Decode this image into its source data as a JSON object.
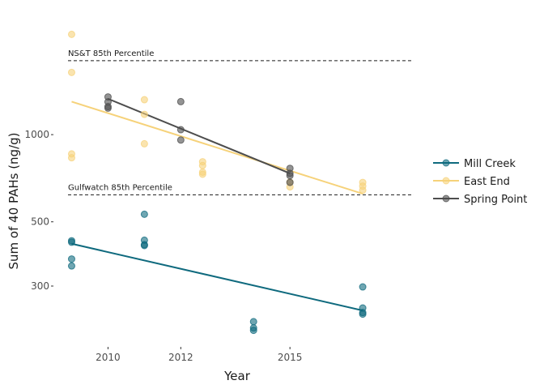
{
  "chart_data": {
    "type": "scatter",
    "xlabel": "Year",
    "ylabel": "Sum of 40 PAHs (ng/g)",
    "xlim": [
      2008.5,
      2018.6
    ],
    "ylim": [
      185,
      2700
    ],
    "y_scale": "log",
    "grid": false,
    "legend_position": "right",
    "x_ticks": [
      2010,
      2012,
      2015
    ],
    "y_ticks": [
      300,
      500,
      1000
    ],
    "reference_lines": [
      {
        "label": "NS&T 85th Percentile",
        "y": 1800
      },
      {
        "label": "Gulfwatch 85th Percentile",
        "y": 620
      }
    ],
    "series": [
      {
        "name": "Mill Creek",
        "color": "#0f6a7e",
        "points": [
          {
            "x": 2009,
            "y": 430
          },
          {
            "x": 2009,
            "y": 425
          },
          {
            "x": 2009,
            "y": 372
          },
          {
            "x": 2009,
            "y": 352
          },
          {
            "x": 2011,
            "y": 531
          },
          {
            "x": 2011,
            "y": 432
          },
          {
            "x": 2011,
            "y": 417
          },
          {
            "x": 2011,
            "y": 414
          },
          {
            "x": 2014,
            "y": 226
          },
          {
            "x": 2014,
            "y": 215
          },
          {
            "x": 2014,
            "y": 211
          },
          {
            "x": 2017,
            "y": 298
          },
          {
            "x": 2017,
            "y": 252
          },
          {
            "x": 2017,
            "y": 243
          },
          {
            "x": 2017,
            "y": 240
          }
        ],
        "trend": [
          {
            "x": 2009,
            "y": 420
          },
          {
            "x": 2017,
            "y": 247
          }
        ]
      },
      {
        "name": "East End",
        "color": "#f6d27a",
        "points": [
          {
            "x": 2009,
            "y": 2220
          },
          {
            "x": 2009,
            "y": 1640
          },
          {
            "x": 2009,
            "y": 858
          },
          {
            "x": 2009,
            "y": 832
          },
          {
            "x": 2011,
            "y": 1320
          },
          {
            "x": 2011,
            "y": 1175
          },
          {
            "x": 2011,
            "y": 930
          },
          {
            "x": 2012.6,
            "y": 806
          },
          {
            "x": 2012.6,
            "y": 782
          },
          {
            "x": 2012.6,
            "y": 742
          },
          {
            "x": 2012.6,
            "y": 730
          },
          {
            "x": 2015,
            "y": 686
          },
          {
            "x": 2015,
            "y": 660
          },
          {
            "x": 2017,
            "y": 684
          },
          {
            "x": 2017,
            "y": 664
          },
          {
            "x": 2017,
            "y": 643
          }
        ],
        "trend": [
          {
            "x": 2009,
            "y": 1300
          },
          {
            "x": 2017,
            "y": 625
          }
        ]
      },
      {
        "name": "Spring Point",
        "color": "#4d4d4d",
        "points": [
          {
            "x": 2010,
            "y": 1350
          },
          {
            "x": 2010,
            "y": 1298
          },
          {
            "x": 2010,
            "y": 1250
          },
          {
            "x": 2010,
            "y": 1235
          },
          {
            "x": 2012,
            "y": 1300
          },
          {
            "x": 2012,
            "y": 1040
          },
          {
            "x": 2012,
            "y": 958
          },
          {
            "x": 2015,
            "y": 765
          },
          {
            "x": 2015,
            "y": 735
          },
          {
            "x": 2015,
            "y": 722
          },
          {
            "x": 2015,
            "y": 684
          }
        ],
        "trend": [
          {
            "x": 2010,
            "y": 1330
          },
          {
            "x": 2015,
            "y": 735
          }
        ]
      }
    ]
  }
}
